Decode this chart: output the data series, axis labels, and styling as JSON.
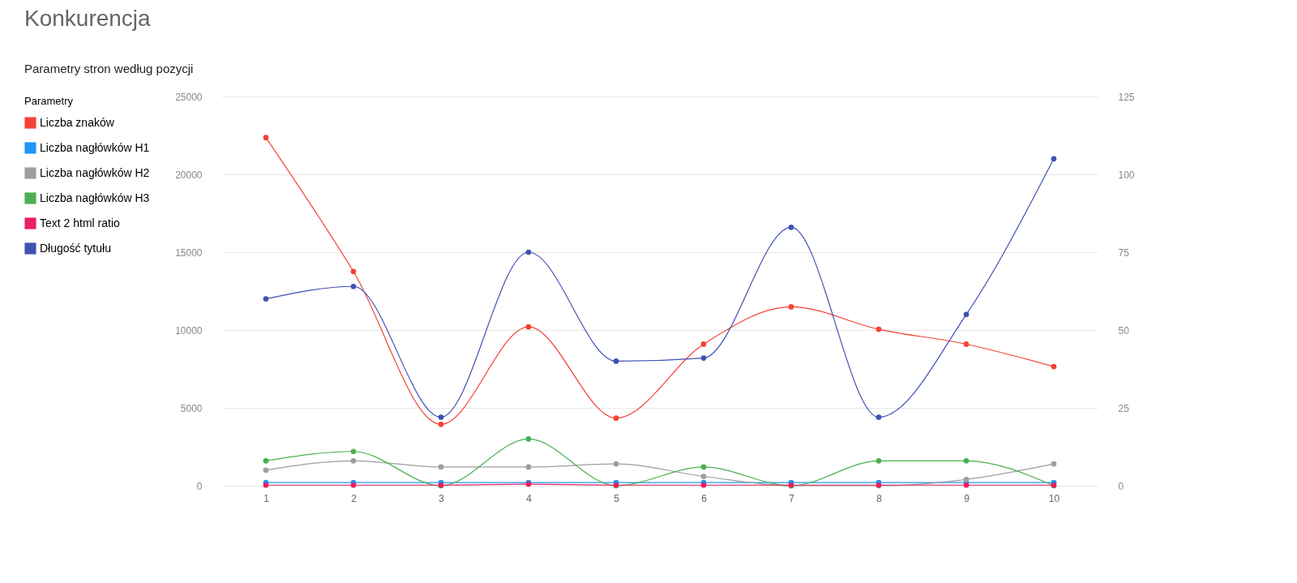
{
  "chart_data": {
    "type": "line",
    "title": "Konkurencja",
    "subtitle": "Parametry stron według pozycji",
    "legend_title": "Parametry",
    "categories": [
      "1",
      "2",
      "3",
      "4",
      "5",
      "6",
      "7",
      "8",
      "9",
      "10"
    ],
    "ylim": [
      0,
      25000
    ],
    "yticks": [
      0,
      5000,
      10000,
      15000,
      20000,
      25000
    ],
    "y2lim": [
      0,
      125
    ],
    "y2ticks": [
      0,
      25,
      50,
      75,
      100,
      125
    ],
    "series": [
      {
        "name": "Liczba znaków",
        "color": "#f44336",
        "values": [
          22360,
          13760,
          3940,
          10200,
          4340,
          9090,
          11490,
          10050,
          9090,
          7650
        ]
      },
      {
        "name": "Liczba nagłówków H1",
        "color": "#2196f3",
        "axis": "y2",
        "values": [
          1,
          1,
          1,
          1,
          1,
          1,
          1,
          1,
          1,
          1
        ]
      },
      {
        "name": "Liczba nagłówków H2",
        "color": "#9e9e9e",
        "axis": "y2",
        "values": [
          5,
          8,
          6,
          6,
          7,
          3,
          0,
          0,
          2,
          7
        ]
      },
      {
        "name": "Liczba nagłówków H3",
        "color": "#4caf50",
        "axis": "y2",
        "values": [
          8,
          11,
          0,
          15,
          0,
          6,
          0,
          8,
          8,
          0
        ]
      },
      {
        "name": "Text 2 html ratio",
        "color": "#e91e63",
        "axis": "y2",
        "values": [
          0.2,
          0.2,
          0.2,
          0.5,
          0.2,
          0.2,
          0.2,
          0.2,
          0.2,
          0.2
        ]
      },
      {
        "name": "Długość tytułu",
        "color": "#3f51b5",
        "axis": "y2",
        "values": [
          60,
          64,
          22,
          75,
          40,
          41,
          83,
          22,
          55,
          105
        ]
      }
    ],
    "grid": "y",
    "legend": "left",
    "marker": "circle",
    "line_style": "solid"
  }
}
